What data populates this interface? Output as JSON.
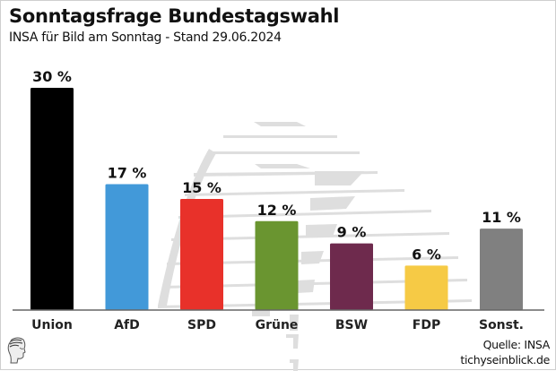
{
  "header": {
    "title": "Sonntagsfrage Bundestagswahl",
    "subtitle": "INSA für Bild am Sonntag - Stand 29.06.2024"
  },
  "footer": {
    "source": "Quelle: INSA",
    "site": "tichyseinblick.de",
    "logo_icon": "greek-head-logo-icon"
  },
  "chart_data": {
    "type": "bar",
    "title": "Sonntagsfrage Bundestagswahl",
    "subtitle": "INSA für Bild am Sonntag - Stand 29.06.2024",
    "xlabel": "",
    "ylabel": "",
    "ylim": [
      0,
      30
    ],
    "grid": false,
    "categories": [
      "Union",
      "AfD",
      "SPD",
      "Grüne",
      "BSW",
      "FDP",
      "Sonst."
    ],
    "values": [
      30,
      17,
      15,
      12,
      9,
      6,
      11
    ],
    "data_labels": [
      "30 %",
      "17 %",
      "15 %",
      "12 %",
      "9 %",
      "6 %",
      "11 %"
    ],
    "colors": [
      "#000000",
      "#4299d9",
      "#e8312a",
      "#6a9530",
      "#6e2a4d",
      "#f6ca45",
      "#808080"
    ]
  }
}
